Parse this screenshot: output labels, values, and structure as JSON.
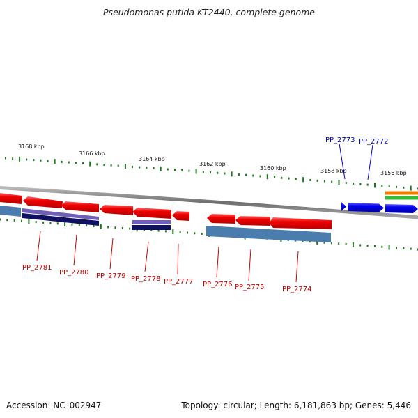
{
  "title": "Pseudomonas putida KT2440, complete genome",
  "footer": {
    "accession": "Accession: NC_002947",
    "summary": "Topology: circular; Length: 6,181,863 bp; Genes: 5,446"
  },
  "colors": {
    "background": "#ffffff",
    "backbone": "#808080",
    "reverse_gene": "#ee0000",
    "forward_gene": "#0000ee",
    "reverse_label": "#cc0000",
    "forward_label": "#0000cc",
    "tick": "#1a7a1a",
    "feature_purple": "#6f5fb8",
    "feature_navy": "#101060",
    "feature_steel": "#4a7cad",
    "feature_orange": "#f07a00",
    "feature_green": "#33bb33"
  },
  "scale_labels": [
    "3168 kbp",
    "3166 kbp",
    "3164 kbp",
    "3162 kbp",
    "3160 kbp",
    "3158 kbp",
    "3156 kbp"
  ],
  "genes": [
    {
      "label": "PP_2781",
      "strand": "-"
    },
    {
      "label": "PP_2780",
      "strand": "-"
    },
    {
      "label": "PP_2779",
      "strand": "-"
    },
    {
      "label": "PP_2778",
      "strand": "-"
    },
    {
      "label": "PP_2777",
      "strand": "-"
    },
    {
      "label": "PP_2776",
      "strand": "-"
    },
    {
      "label": "PP_2775",
      "strand": "-"
    },
    {
      "label": "PP_2774",
      "strand": "-"
    },
    {
      "label": "PP_2773",
      "strand": "+"
    },
    {
      "label": "PP_2772",
      "strand": "+"
    }
  ]
}
